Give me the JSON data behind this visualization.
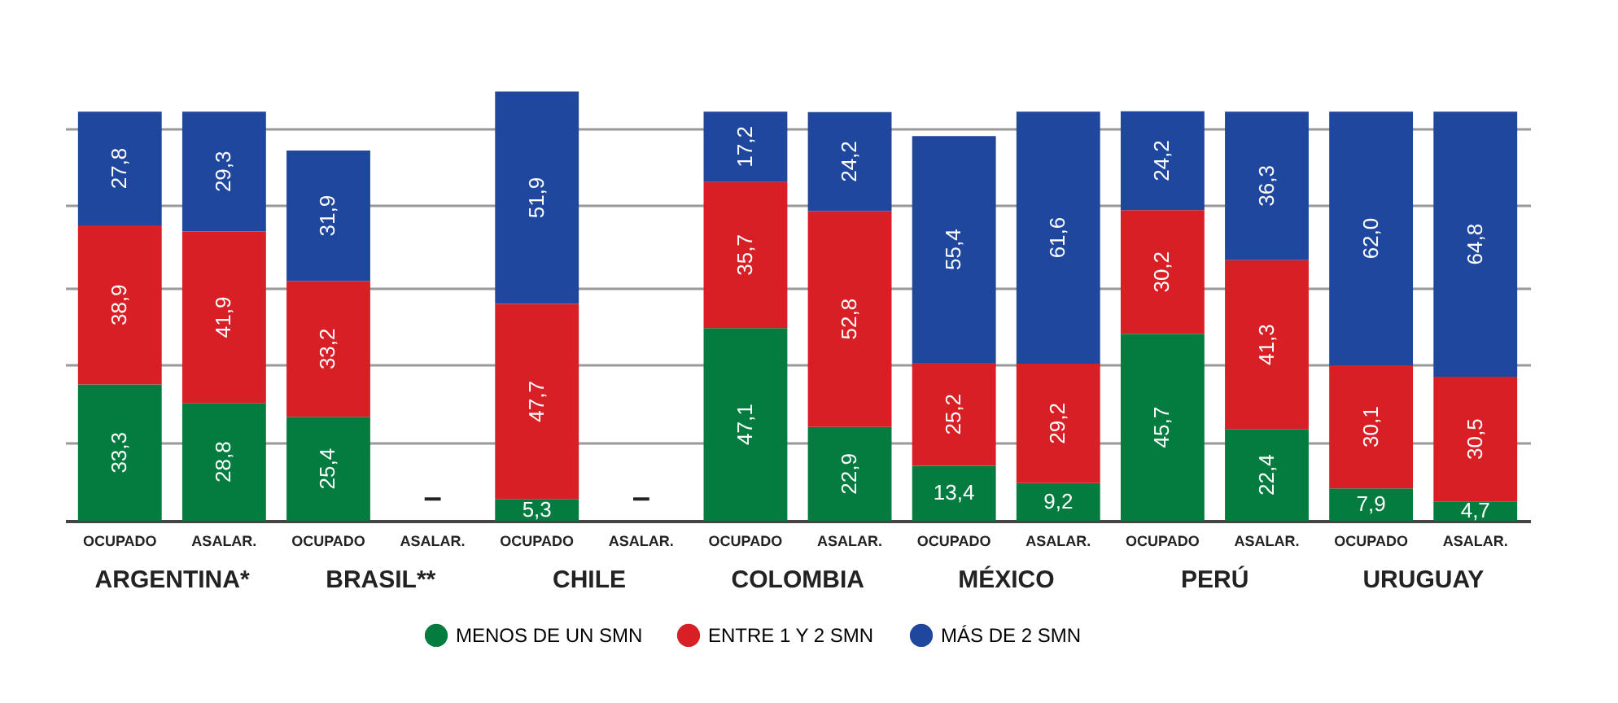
{
  "chart_data": {
    "type": "bar",
    "stacked": true,
    "categories": [
      "OCUPADO",
      "ASALAR.",
      "OCUPADO",
      "ASALAR.",
      "OCUPADO",
      "ASALAR.",
      "OCUPADO",
      "ASALAR.",
      "OCUPADO",
      "ASALAR.",
      "OCUPADO",
      "ASALAR.",
      "OCUPADO",
      "ASALAR."
    ],
    "series": [
      {
        "name": "MENOS DE UN SMN",
        "color": "#047c3f",
        "values": [
          33.3,
          28.8,
          25.4,
          null,
          5.3,
          null,
          47.1,
          22.9,
          13.4,
          9.2,
          45.7,
          22.4,
          7.9,
          4.7
        ],
        "value_labels": [
          "33,3",
          "28,8",
          "25,4",
          "–",
          "5,3",
          "–",
          "47,1",
          "22,9",
          "13,4",
          "9,2",
          "45,7",
          "22,4",
          "7,9",
          "4,7"
        ]
      },
      {
        "name": "ENTRE 1 Y 2 SMN",
        "color": "#d81f26",
        "values": [
          38.9,
          41.9,
          33.2,
          null,
          47.7,
          null,
          35.7,
          52.8,
          25.2,
          29.2,
          30.2,
          41.3,
          30.1,
          30.5
        ],
        "value_labels": [
          "38,9",
          "41,9",
          "33,2",
          null,
          "47,7",
          null,
          "35,7",
          "52,8",
          "25,2",
          "29,2",
          "30,2",
          "41,3",
          "30,1",
          "30,5"
        ]
      },
      {
        "name": "MÁS DE 2 SMN",
        "color": "#1f479e",
        "values": [
          27.8,
          29.3,
          31.9,
          null,
          51.9,
          null,
          17.2,
          24.2,
          55.4,
          61.6,
          24.2,
          36.3,
          62.0,
          64.8
        ],
        "value_labels": [
          "27,8",
          "29,3",
          "31,9",
          null,
          "51,9",
          null,
          "17,2",
          "24,2",
          "55,4",
          "61,6",
          "24,2",
          "36,3",
          "62,0",
          "64,8"
        ]
      }
    ],
    "annotations": [
      "ARGENTINA*",
      "BRASIL**",
      "CHILE",
      "COLOMBIA",
      "MÉXICO",
      "PERÚ",
      "URUGUAY"
    ],
    "ylim": [
      0,
      105
    ],
    "yticks": [
      {
        "value": 19,
        "label": null
      },
      {
        "value": 38,
        "label": null
      },
      {
        "value": 57,
        "label": null
      },
      {
        "value": 77,
        "label": null
      },
      {
        "value": 96,
        "label": null
      }
    ],
    "grid": "y",
    "tick_labels": "x",
    "legend": "bottom"
  }
}
